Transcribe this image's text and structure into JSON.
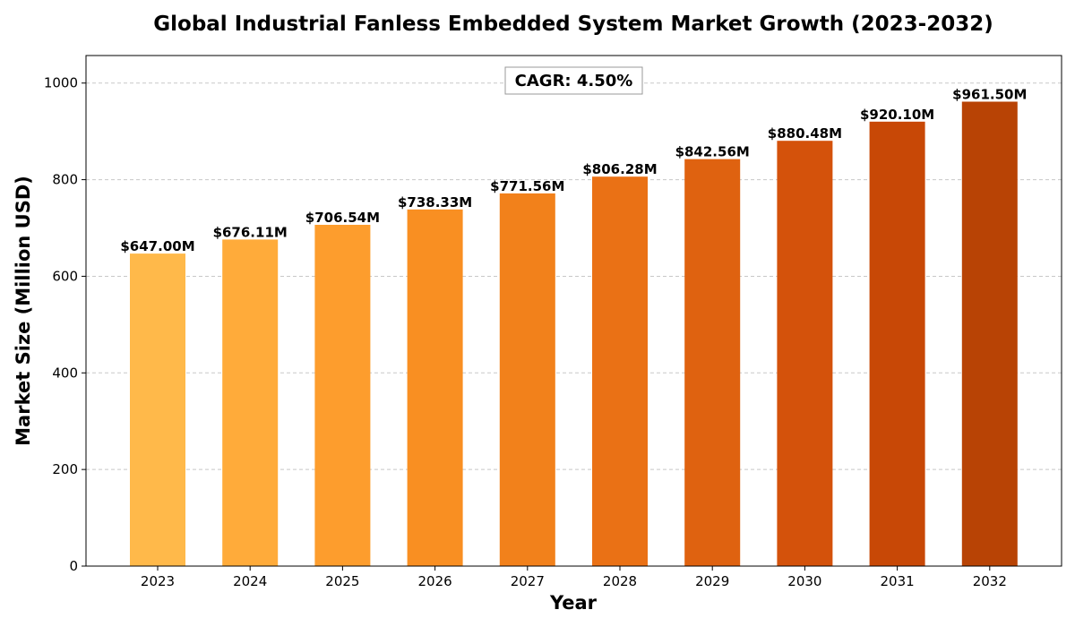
{
  "chart_data": {
    "type": "bar",
    "title": "Global Industrial Fanless Embedded System Market Growth (2023-2032)",
    "xlabel": "Year",
    "ylabel": "Market Size (Million USD)",
    "categories": [
      "2023",
      "2024",
      "2025",
      "2026",
      "2027",
      "2028",
      "2029",
      "2030",
      "2031",
      "2032"
    ],
    "values": [
      647.0,
      676.11,
      706.54,
      738.33,
      771.56,
      806.28,
      842.56,
      880.48,
      920.1,
      961.5
    ],
    "data_labels": [
      "$647.00M",
      "$676.11M",
      "$706.54M",
      "$738.33M",
      "$771.56M",
      "$806.28M",
      "$842.56M",
      "$880.48M",
      "$920.10M",
      "$961.50M"
    ],
    "bar_colors": [
      "#ffb94a",
      "#ffab3a",
      "#fd9d2d",
      "#f98f22",
      "#f2811b",
      "#ea7115",
      "#df6210",
      "#d4520b",
      "#c84806",
      "#b84305"
    ],
    "yticks": [
      0,
      200,
      400,
      600,
      800,
      1000
    ],
    "ylim": [
      0,
      1057
    ],
    "grid": "y-dashed",
    "annotation": "CAGR: 4.50%"
  }
}
